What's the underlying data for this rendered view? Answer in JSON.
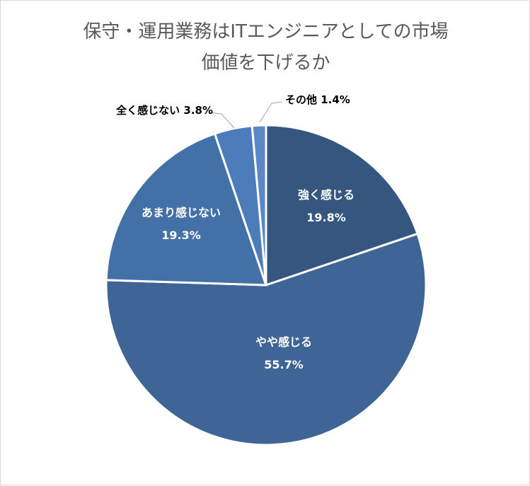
{
  "chart_data": {
    "type": "pie",
    "title": "保守・運用業務はITエンジニアとしての市場\n価値を下げるか",
    "title_lines": [
      "保守・運用業務はITエンジニアとしての市場",
      "価値を下げるか"
    ],
    "slices": [
      {
        "label": "強く感じる",
        "value": 19.8,
        "value_text": "19.8%",
        "color": "#34567f",
        "label_position": "inside"
      },
      {
        "label": "やや感じる",
        "value": 55.7,
        "value_text": "55.7%",
        "color": "#3f6496",
        "label_position": "inside"
      },
      {
        "label": "あまり感じない",
        "value": 19.3,
        "value_text": "19.3%",
        "color": "#4470a8",
        "label_position": "inside"
      },
      {
        "label": "全く感じない",
        "value": 3.8,
        "value_text": "3.8%",
        "color": "#4d7cba",
        "label_position": "outside"
      },
      {
        "label": "その他",
        "value": 1.4,
        "value_text": "1.4%",
        "color": "#5a88c6",
        "label_position": "outside"
      }
    ],
    "start_angle_deg": 0,
    "direction": "clockwise",
    "legend": "none",
    "colors": {
      "slice_border": "#ffffff",
      "leader_line": "#a6a6a6",
      "title": "#595959"
    }
  }
}
